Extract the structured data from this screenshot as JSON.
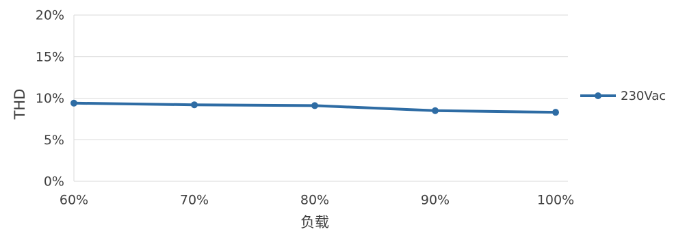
{
  "chart_data": {
    "type": "line",
    "categories": [
      "60%",
      "70%",
      "80%",
      "90%",
      "100%"
    ],
    "series": [
      {
        "name": "230Vac",
        "values": [
          9.4,
          9.2,
          9.1,
          8.5,
          8.3
        ],
        "color": "#2e6ca4"
      }
    ],
    "xlabel": "负载",
    "ylabel": "THD",
    "ylim": [
      0,
      20
    ],
    "yticks": [
      0,
      5,
      10,
      15,
      20
    ],
    "ytick_labels": [
      "0%",
      "5%",
      "10%",
      "15%",
      "20%"
    ],
    "grid": true,
    "gridColor": "#d9d9d9",
    "legend": "right"
  }
}
